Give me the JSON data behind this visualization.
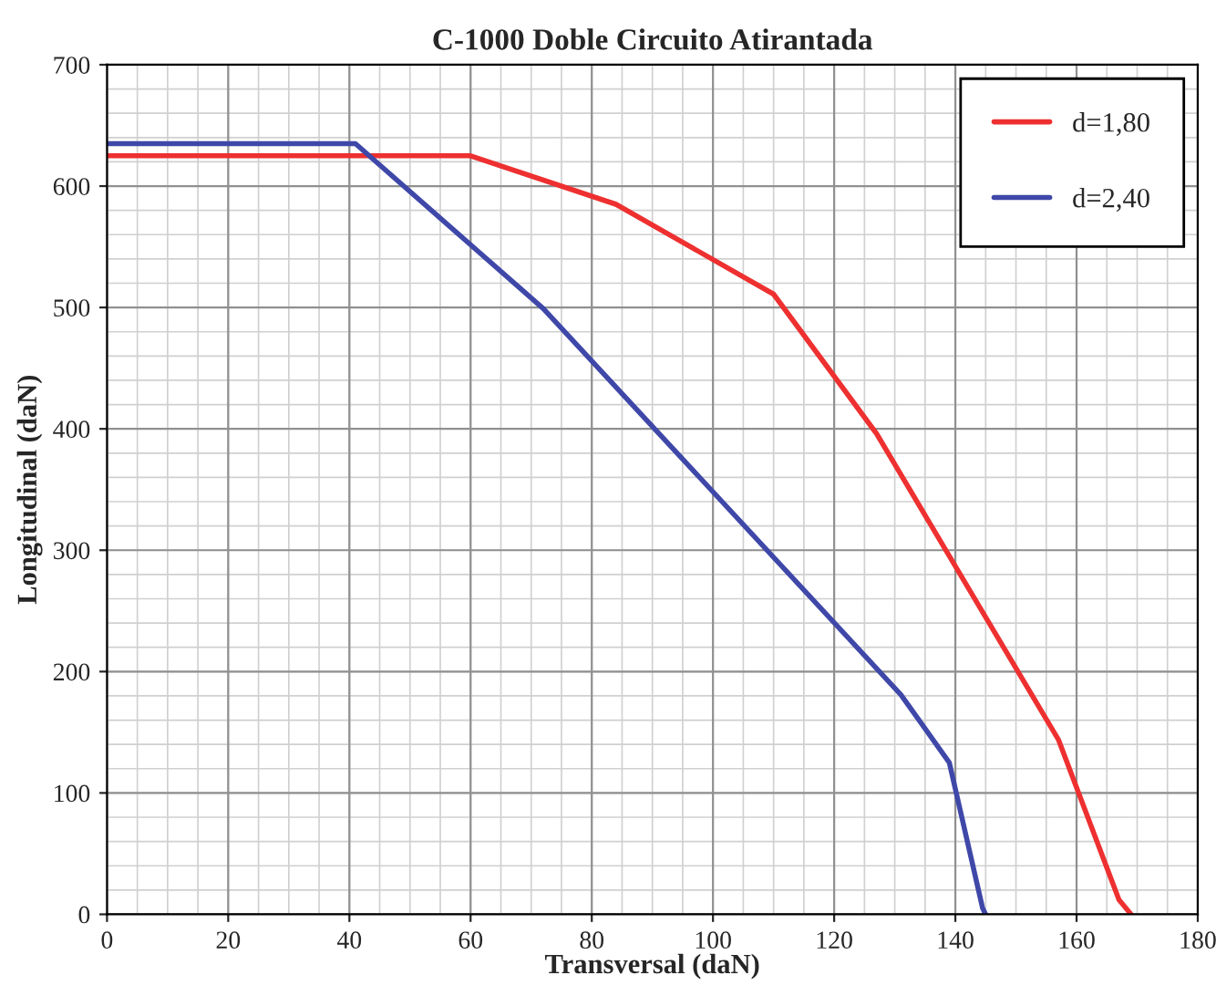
{
  "chart_data": {
    "type": "line",
    "title": "C-1000 Doble Circuito Atirantada",
    "xlabel": "Transversal (daN)",
    "ylabel": "Longitudinal (daN)",
    "series": [
      {
        "name": "d=1,80",
        "color": "#ee3030",
        "x": [
          0,
          60,
          84,
          110,
          127,
          157,
          167,
          169
        ],
        "values": [
          625,
          625,
          585,
          511,
          396,
          144,
          12,
          0
        ]
      },
      {
        "name": "d=2,40",
        "color": "#3f48a8",
        "x": [
          0,
          41,
          72,
          131,
          139,
          144.5,
          145
        ],
        "values": [
          635,
          635,
          499,
          181,
          125,
          5,
          0
        ]
      }
    ],
    "xlim": [
      0,
      180
    ],
    "xticks": [
      0,
      20,
      40,
      60,
      80,
      100,
      120,
      140,
      160,
      180
    ],
    "ylim": [
      0,
      700
    ],
    "yticks": [
      0,
      100,
      200,
      300,
      400,
      500,
      600,
      700
    ],
    "grid": true,
    "legend": "top right",
    "marker": "none",
    "line_style": "solid"
  }
}
